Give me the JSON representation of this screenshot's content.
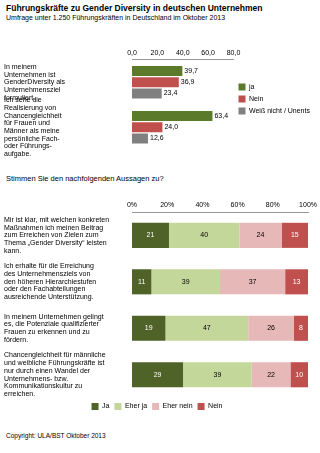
{
  "title": "Führungskräfte zu Gender Diversity in deutschen Unternehmen",
  "subtitle": "Umfrage unter 1.250 Führungskräften in Deutschland im Oktober 2013",
  "question": "Stimmen Sie den nachfolgenden Aussagen zu?",
  "source": "Copyright: ULA/BST Oktober 2013",
  "chart_data": [
    {
      "type": "bar",
      "orientation": "horizontal",
      "stacked": false,
      "grid": false,
      "legend": "right",
      "data_labels": true,
      "categories": [
        "In meinem\nUnternehmen ist\nGenderDiversity als\nUnternehmensziel\nformuliert.",
        "Ich sehe die\nRealisierung von\nChancengleichheit\nfür Frauen und\nMänner als meine\npersönliche Fach-\noder Führungs-\naufgabe."
      ],
      "series": [
        {
          "name": "ja",
          "color": "#5b7b2b",
          "values": [
            39.7,
            63.4
          ],
          "value_labels": [
            "39,7",
            "63,4"
          ]
        },
        {
          "name": "Nein",
          "color": "#c0504d",
          "values": [
            36.9,
            24.0
          ],
          "value_labels": [
            "36,9",
            "24,0"
          ]
        },
        {
          "name": "Weiß nicht / Unentschieden",
          "color": "#808080",
          "values": [
            23.4,
            12.6
          ],
          "value_labels": [
            "23,4",
            "12,6"
          ]
        }
      ],
      "xlim": [
        0,
        80
      ],
      "xticks": [
        {
          "value": 0,
          "label": "0,0"
        },
        {
          "value": 20,
          "label": "20,0"
        },
        {
          "value": 40,
          "label": "40,0"
        },
        {
          "value": 60,
          "label": "60,0"
        },
        {
          "value": 80,
          "label": "80,0"
        }
      ]
    },
    {
      "type": "bar",
      "orientation": "horizontal",
      "stacked": true,
      "grid": false,
      "legend": "bottom",
      "data_labels": true,
      "categories": [
        "Mir ist klar, mit welchen konkreten\nMaßnahmen ich meinen Beitrag\nzum Erreichen von Zielen zum\nThema „Gender Diversity“ leisten\nkann.",
        "Ich erhalte für die Erreichung\ndes Unternehmensziels von\nden höheren Hierarchiestufen\noder den Fachabteilungen\nausreichende Unterstützung.",
        "In meinem Unternehmen gelingt\nes, die Potenziale qualifizierter\nFrauen zu erkennen und zu\nfördern.",
        "Chancengleichheit für männliche\nund weibliche Führungskräfte ist\nnur durch einen Wandel der\nUnternehmens- bzw.\nKommunikationskultur zu\nerreichen."
      ],
      "series": [
        {
          "name": "Ja",
          "color": "#4f6228",
          "values": [
            21,
            11,
            19,
            29
          ]
        },
        {
          "name": "Eher ja",
          "color": "#c4d79b",
          "values": [
            40,
            39,
            47,
            39
          ]
        },
        {
          "name": "Eher nein",
          "color": "#e6b8b7",
          "values": [
            24,
            37,
            26,
            22
          ]
        },
        {
          "name": "Nein",
          "color": "#c0504d",
          "values": [
            15,
            13,
            8,
            10
          ]
        }
      ],
      "xlim": [
        0,
        100
      ],
      "xticks": [
        {
          "value": 0,
          "label": "0%"
        },
        {
          "value": 20,
          "label": "20%"
        },
        {
          "value": 40,
          "label": "40%"
        },
        {
          "value": 60,
          "label": "60%"
        },
        {
          "value": 80,
          "label": "80%"
        },
        {
          "value": 100,
          "label": "100%"
        }
      ]
    }
  ]
}
